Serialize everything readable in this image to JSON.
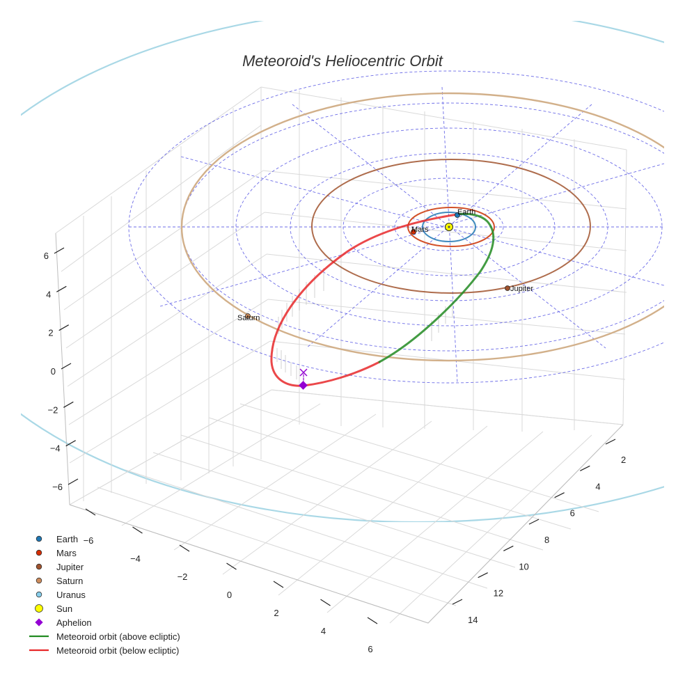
{
  "chart_data": {
    "type": "scatter",
    "title": "Meteoroid's Heliocentric Orbit",
    "projection": "3d",
    "axes": {
      "x": {
        "ticks": [
          -6,
          -4,
          -2,
          0,
          2,
          4,
          6
        ],
        "range": [
          -7,
          7
        ]
      },
      "y": {
        "ticks": [
          2,
          4,
          6,
          8,
          10,
          12,
          14
        ],
        "range": [
          1,
          15
        ]
      },
      "z": {
        "ticks": [
          6,
          4,
          2,
          0,
          -2,
          -4,
          -6
        ],
        "tick_labels": [
          "6",
          "4",
          "2",
          "0",
          "−2",
          "−4",
          "−6"
        ],
        "range": [
          -7,
          7
        ]
      }
    },
    "x_tick_labels": [
      "−6",
      "−4",
      "−2",
      "0",
      "2",
      "4",
      "6"
    ],
    "planets": [
      {
        "name": "Earth",
        "label": "Earth",
        "color": "#1f77b4"
      },
      {
        "name": "Mars",
        "label": "Mars",
        "color": "#d62d00"
      },
      {
        "name": "Jupiter",
        "label": "Jupiter",
        "color": "#a0522d"
      },
      {
        "name": "Saturn",
        "label": "Saturn",
        "color": "#cd8c5c"
      },
      {
        "name": "Uranus",
        "label": "Uranus",
        "color": "#87ceeb"
      }
    ],
    "sun": {
      "label": "Sun",
      "color": "#ffff00"
    },
    "aphelion": {
      "label": "Aphelion",
      "color": "#9400d3"
    },
    "orbit_above": {
      "label": "Meteoroid orbit (above ecliptic)",
      "color": "#228b22"
    },
    "orbit_below": {
      "label": "Meteoroid orbit (below ecliptic)",
      "color": "#e8282a"
    },
    "legend": [
      {
        "label": "Earth",
        "marker": "circle",
        "color": "#1f77b4"
      },
      {
        "label": "Mars",
        "marker": "circle",
        "color": "#d62d00"
      },
      {
        "label": "Jupiter",
        "marker": "circle",
        "color": "#a0522d"
      },
      {
        "label": "Saturn",
        "marker": "circle",
        "color": "#cd8c5c"
      },
      {
        "label": "Uranus",
        "marker": "circle",
        "color": "#87ceeb"
      },
      {
        "label": "Sun",
        "marker": "big-circle",
        "color": "#ffff00"
      },
      {
        "label": "Aphelion",
        "marker": "diamond",
        "color": "#9400d3"
      },
      {
        "label": "Meteoroid orbit (above ecliptic)",
        "marker": "line",
        "color": "#228b22"
      },
      {
        "label": "Meteoroid orbit (below ecliptic)",
        "marker": "line",
        "color": "#e8282a"
      }
    ],
    "legend_position": "bottom-left",
    "grid": true
  }
}
